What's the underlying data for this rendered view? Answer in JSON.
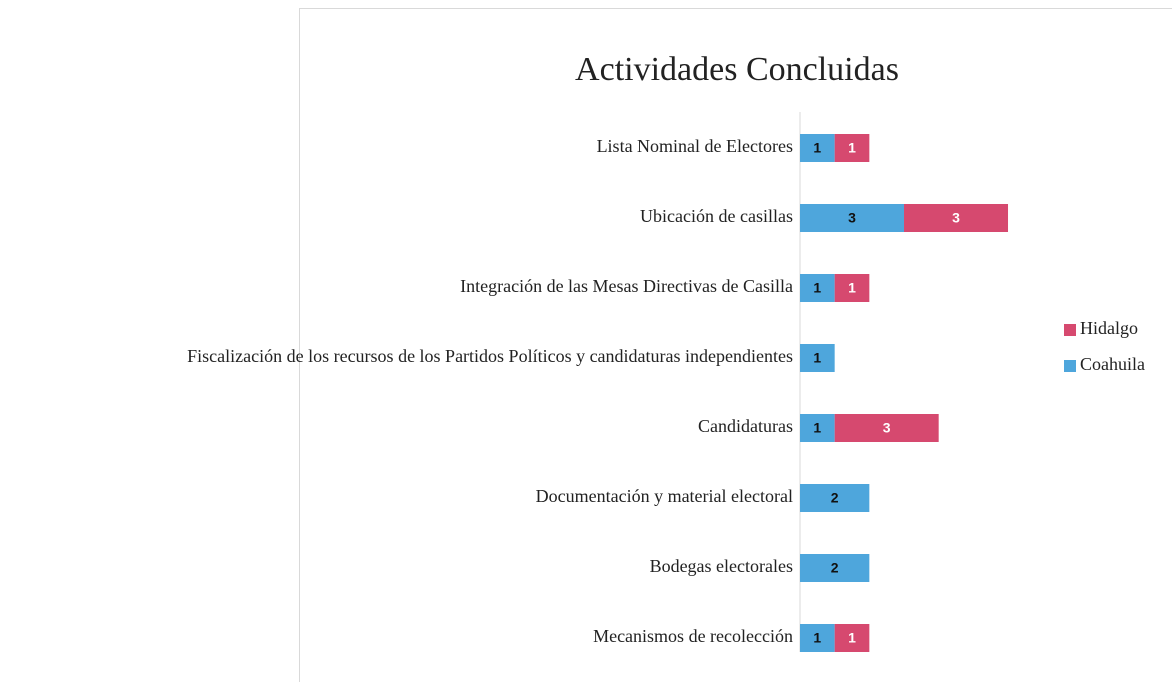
{
  "chart_data": {
    "type": "stacked-bar",
    "orientation": "horizontal",
    "title": "Actividades Concluidas",
    "categories": [
      "Lista Nominal de Electores",
      "Ubicación de casillas",
      "Integración de las Mesas Directivas de Casilla",
      "Fiscalización de los recursos de los Partidos Políticos y candidaturas independientes",
      "Candidaturas",
      "Documentación y material electoral",
      "Bodegas electorales",
      "Mecanismos de recolección"
    ],
    "series": [
      {
        "name": "Coahuila",
        "color": "#4ea6dc",
        "label_color": "#111111",
        "values": [
          1,
          3,
          1,
          1,
          1,
          2,
          2,
          1
        ]
      },
      {
        "name": "Hidalgo",
        "color": "#d6496f",
        "label_color": "#ffffff",
        "values": [
          1,
          3,
          1,
          null,
          3,
          null,
          null,
          1
        ]
      }
    ],
    "legend": "right"
  }
}
